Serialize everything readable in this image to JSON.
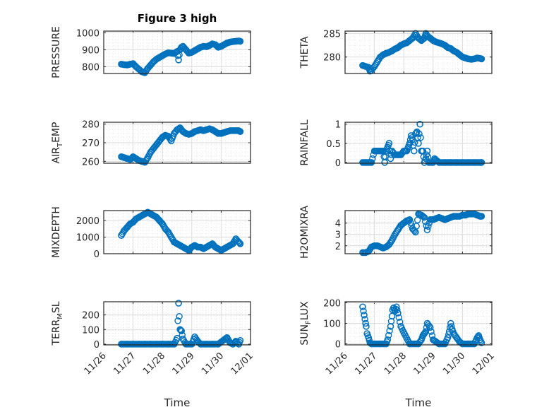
{
  "figure": {
    "title": "Figure 3 high",
    "marker_color": "#0072BD",
    "axes_color": "#262626",
    "grid_color": "#dcdcdc"
  },
  "chart_data": [
    {
      "type": "scatter",
      "panel": "top-left",
      "title": "Figure 3 high",
      "ylabel": "PRESSURE",
      "xlabel": "",
      "xlim": [
        0,
        5
      ],
      "x_tick_labels": [
        "11/26",
        "11/27",
        "11/28",
        "11/29",
        "11/30",
        "12/01"
      ],
      "ylim": [
        760,
        1010
      ],
      "yticks": [
        800,
        900,
        1000
      ],
      "x": [
        0.6,
        0.7,
        0.8,
        0.9,
        1.0,
        1.1,
        1.2,
        1.3,
        1.4,
        1.5,
        1.6,
        1.7,
        1.8,
        1.9,
        2.0,
        2.1,
        2.2,
        2.3,
        2.4,
        2.5,
        2.55,
        2.6,
        2.65,
        2.7,
        2.8,
        2.9,
        3.0,
        3.1,
        3.2,
        3.3,
        3.4,
        3.5,
        3.6,
        3.7,
        3.8,
        3.9,
        4.0,
        4.1,
        4.2,
        4.3,
        4.4,
        4.5,
        4.6,
        4.65
      ],
      "y": [
        815,
        812,
        810,
        815,
        818,
        800,
        785,
        770,
        765,
        790,
        810,
        830,
        845,
        855,
        865,
        875,
        882,
        880,
        878,
        890,
        840,
        900,
        915,
        920,
        900,
        880,
        885,
        895,
        905,
        915,
        920,
        918,
        925,
        935,
        930,
        915,
        920,
        930,
        940,
        945,
        948,
        950,
        952,
        950
      ]
    },
    {
      "type": "scatter",
      "panel": "top-right",
      "ylabel": "THETA",
      "xlabel": "",
      "xlim": [
        0,
        5
      ],
      "x_tick_labels": [
        "11/26",
        "11/27",
        "11/28",
        "11/29",
        "11/30",
        "12/01"
      ],
      "ylim": [
        276.5,
        285.5
      ],
      "yticks": [
        280,
        285
      ],
      "x": [
        0.6,
        0.7,
        0.8,
        0.85,
        0.9,
        1.0,
        1.1,
        1.2,
        1.3,
        1.4,
        1.5,
        1.6,
        1.7,
        1.8,
        1.9,
        2.0,
        2.1,
        2.2,
        2.3,
        2.4,
        2.5,
        2.6,
        2.7,
        2.75,
        2.8,
        2.9,
        3.0,
        3.1,
        3.2,
        3.3,
        3.4,
        3.5,
        3.6,
        3.7,
        3.8,
        3.9,
        4.0,
        4.1,
        4.2,
        4.3,
        4.4,
        4.5,
        4.6,
        4.65
      ],
      "y": [
        278.2,
        278.0,
        277.8,
        277.0,
        277.2,
        278.0,
        279.0,
        280.0,
        280.5,
        280.8,
        281.0,
        281.3,
        281.7,
        282.0,
        282.5,
        282.8,
        283.0,
        283.5,
        284.0,
        285.0,
        284.0,
        283.5,
        284.0,
        285.0,
        284.5,
        284.0,
        283.5,
        283.2,
        283.0,
        282.8,
        282.5,
        282.0,
        281.8,
        281.3,
        281.0,
        280.5,
        280.0,
        279.8,
        279.6,
        279.5,
        279.6,
        279.8,
        279.7,
        279.6
      ]
    },
    {
      "type": "scatter",
      "panel": "row2-left",
      "ylabel": "AIR_TEMP",
      "xlabel": "",
      "xlim": [
        0,
        5
      ],
      "x_tick_labels": [
        "11/26",
        "11/27",
        "11/28",
        "11/29",
        "11/30",
        "12/01"
      ],
      "ylim": [
        259,
        281
      ],
      "yticks": [
        260,
        270,
        280
      ],
      "x": [
        0.6,
        0.7,
        0.8,
        0.9,
        1.0,
        1.1,
        1.2,
        1.3,
        1.4,
        1.5,
        1.6,
        1.7,
        1.8,
        1.9,
        2.0,
        2.1,
        2.2,
        2.3,
        2.4,
        2.5,
        2.6,
        2.7,
        2.8,
        2.9,
        3.0,
        3.1,
        3.2,
        3.3,
        3.4,
        3.5,
        3.6,
        3.7,
        3.8,
        3.9,
        4.0,
        4.1,
        4.2,
        4.3,
        4.4,
        4.5,
        4.6,
        4.65
      ],
      "y": [
        262.5,
        262.0,
        261.5,
        261.0,
        262.5,
        261.5,
        260.5,
        260.0,
        259.5,
        262.0,
        265.0,
        267.0,
        269.0,
        271.0,
        273.0,
        274.0,
        273.5,
        271.0,
        275.0,
        277.0,
        278.0,
        276.0,
        275.0,
        274.5,
        275.0,
        276.0,
        276.5,
        277.0,
        276.5,
        277.0,
        277.5,
        277.0,
        276.0,
        275.0,
        275.0,
        275.5,
        276.0,
        276.5,
        276.5,
        276.5,
        276.5,
        276.0
      ]
    },
    {
      "type": "scatter",
      "panel": "row2-right",
      "ylabel": "RAINFALL",
      "xlabel": "",
      "xlim": [
        0,
        5
      ],
      "x_tick_labels": [
        "11/26",
        "11/27",
        "11/28",
        "11/29",
        "11/30",
        "12/01"
      ],
      "ylim": [
        -0.02,
        1.05
      ],
      "yticks": [
        0,
        0.5,
        1
      ],
      "x": [
        0.6,
        0.7,
        0.8,
        0.9,
        1.0,
        1.1,
        1.2,
        1.3,
        1.35,
        1.4,
        1.45,
        1.5,
        1.55,
        1.6,
        1.7,
        1.8,
        1.9,
        2.0,
        2.1,
        2.15,
        2.2,
        2.25,
        2.3,
        2.35,
        2.4,
        2.45,
        2.5,
        2.55,
        2.6,
        2.65,
        2.7,
        2.75,
        2.8,
        2.85,
        3.0,
        3.05,
        3.2,
        3.4,
        3.6,
        3.8,
        4.0,
        4.2,
        4.4,
        4.6,
        4.65
      ],
      "y": [
        0,
        0,
        0,
        0,
        0.3,
        0.3,
        0.3,
        0.3,
        0,
        0.3,
        0.4,
        0.5,
        0.1,
        0.3,
        0.2,
        0.2,
        0.2,
        0.3,
        0.3,
        0.4,
        0.5,
        0.7,
        0.6,
        0.3,
        0.75,
        0.8,
        0.5,
        1.0,
        0.3,
        0.3,
        0.0,
        0.1,
        0.3,
        0.0,
        0.0,
        0.1,
        0,
        0,
        0,
        0,
        0,
        0,
        0,
        0,
        0
      ]
    },
    {
      "type": "scatter",
      "panel": "row3-left",
      "ylabel": "MIXDEPTH",
      "xlabel": "",
      "xlim": [
        0,
        5
      ],
      "x_tick_labels": [
        "11/26",
        "11/27",
        "11/28",
        "11/29",
        "11/30",
        "12/01"
      ],
      "ylim": [
        0,
        2600
      ],
      "yticks": [
        0,
        1000,
        2000
      ],
      "x": [
        0.6,
        0.7,
        0.8,
        0.9,
        1.0,
        1.1,
        1.2,
        1.3,
        1.4,
        1.5,
        1.6,
        1.7,
        1.8,
        1.9,
        2.0,
        2.1,
        2.2,
        2.3,
        2.4,
        2.5,
        2.6,
        2.7,
        2.8,
        2.9,
        3.0,
        3.1,
        3.2,
        3.3,
        3.4,
        3.5,
        3.6,
        3.7,
        3.8,
        3.9,
        4.0,
        4.1,
        4.2,
        4.3,
        4.4,
        4.5,
        4.6,
        4.65
      ],
      "y": [
        1100,
        1400,
        1600,
        1800,
        1900,
        2100,
        2200,
        2300,
        2400,
        2500,
        2400,
        2300,
        2200,
        2000,
        1800,
        1500,
        1300,
        1000,
        700,
        600,
        500,
        400,
        300,
        200,
        400,
        500,
        400,
        400,
        300,
        400,
        500,
        600,
        400,
        300,
        200,
        300,
        400,
        500,
        600,
        900,
        700,
        600
      ]
    },
    {
      "type": "scatter",
      "panel": "row3-right",
      "ylabel": "H2OMIXRA",
      "xlabel": "",
      "xlim": [
        0,
        5
      ],
      "x_tick_labels": [
        "11/26",
        "11/27",
        "11/28",
        "11/29",
        "11/30",
        "12/01"
      ],
      "ylim": [
        1.3,
        5.1
      ],
      "yticks": [
        2,
        3,
        4
      ],
      "x": [
        0.6,
        0.7,
        0.8,
        0.9,
        1.0,
        1.1,
        1.2,
        1.3,
        1.4,
        1.5,
        1.6,
        1.7,
        1.8,
        1.9,
        2.0,
        2.1,
        2.2,
        2.3,
        2.4,
        2.5,
        2.6,
        2.7,
        2.8,
        2.9,
        3.0,
        3.1,
        3.2,
        3.3,
        3.4,
        3.5,
        3.6,
        3.7,
        3.8,
        3.9,
        4.0,
        4.1,
        4.2,
        4.3,
        4.4,
        4.5,
        4.6,
        4.65
      ],
      "y": [
        1.4,
        1.4,
        1.5,
        1.9,
        2.0,
        2.0,
        1.9,
        1.8,
        1.9,
        2.1,
        2.5,
        3.0,
        3.4,
        3.8,
        4.0,
        4.2,
        4.3,
        3.5,
        3.2,
        4.8,
        4.7,
        4.5,
        3.4,
        4.3,
        4.3,
        4.4,
        4.5,
        4.4,
        4.3,
        4.4,
        4.5,
        4.6,
        4.6,
        4.6,
        4.7,
        4.7,
        4.8,
        4.8,
        4.8,
        4.7,
        4.6,
        4.6
      ]
    },
    {
      "type": "scatter",
      "panel": "row4-left",
      "ylabel": "TERR_MSL",
      "xlabel": "Time",
      "xlim": [
        0,
        5
      ],
      "x_tick_labels": [
        "11/26",
        "11/27",
        "11/28",
        "11/29",
        "11/30",
        "12/01"
      ],
      "ylim": [
        -5,
        290
      ],
      "yticks": [
        0,
        100,
        200
      ],
      "x": [
        0.6,
        0.8,
        1.0,
        1.2,
        1.4,
        1.6,
        1.8,
        2.0,
        2.2,
        2.4,
        2.5,
        2.55,
        2.6,
        2.65,
        2.7,
        2.8,
        3.0,
        3.1,
        3.2,
        3.3,
        3.5,
        3.7,
        3.9,
        4.1,
        4.2,
        4.3,
        4.4,
        4.5,
        4.6,
        4.65
      ],
      "y": [
        0,
        0,
        0,
        0,
        0,
        0,
        0,
        0,
        0,
        0,
        40,
        280,
        100,
        90,
        35,
        0,
        0,
        50,
        20,
        0,
        0,
        0,
        0,
        30,
        45,
        10,
        0,
        20,
        0,
        25
      ]
    },
    {
      "type": "scatter",
      "panel": "row4-right",
      "ylabel": "SUN_FLUX",
      "xlabel": "Time",
      "xlim": [
        0,
        5
      ],
      "x_tick_labels": [
        "11/26",
        "11/27",
        "11/28",
        "11/29",
        "11/30",
        "12/01"
      ],
      "ylim": [
        -5,
        205
      ],
      "yticks": [
        0,
        100,
        200
      ],
      "x": [
        0.6,
        0.65,
        0.7,
        0.72,
        0.75,
        0.8,
        0.85,
        0.9,
        1.0,
        1.2,
        1.4,
        1.45,
        1.55,
        1.6,
        1.62,
        1.65,
        1.7,
        1.75,
        1.8,
        1.9,
        2.0,
        2.2,
        2.4,
        2.5,
        2.6,
        2.65,
        2.7,
        2.75,
        2.8,
        2.9,
        3.0,
        3.2,
        3.4,
        3.5,
        3.55,
        3.6,
        3.65,
        3.7,
        3.8,
        3.9,
        4.0,
        4.2,
        4.4,
        4.5,
        4.55,
        4.6,
        4.65
      ],
      "y": [
        180,
        140,
        100,
        85,
        50,
        30,
        5,
        0,
        0,
        0,
        0,
        20,
        85,
        135,
        165,
        175,
        160,
        180,
        150,
        85,
        55,
        0,
        0,
        0,
        20,
        40,
        50,
        60,
        100,
        80,
        20,
        0,
        0,
        30,
        60,
        100,
        70,
        50,
        30,
        10,
        0,
        0,
        0,
        30,
        40,
        20,
        5
      ]
    }
  ]
}
